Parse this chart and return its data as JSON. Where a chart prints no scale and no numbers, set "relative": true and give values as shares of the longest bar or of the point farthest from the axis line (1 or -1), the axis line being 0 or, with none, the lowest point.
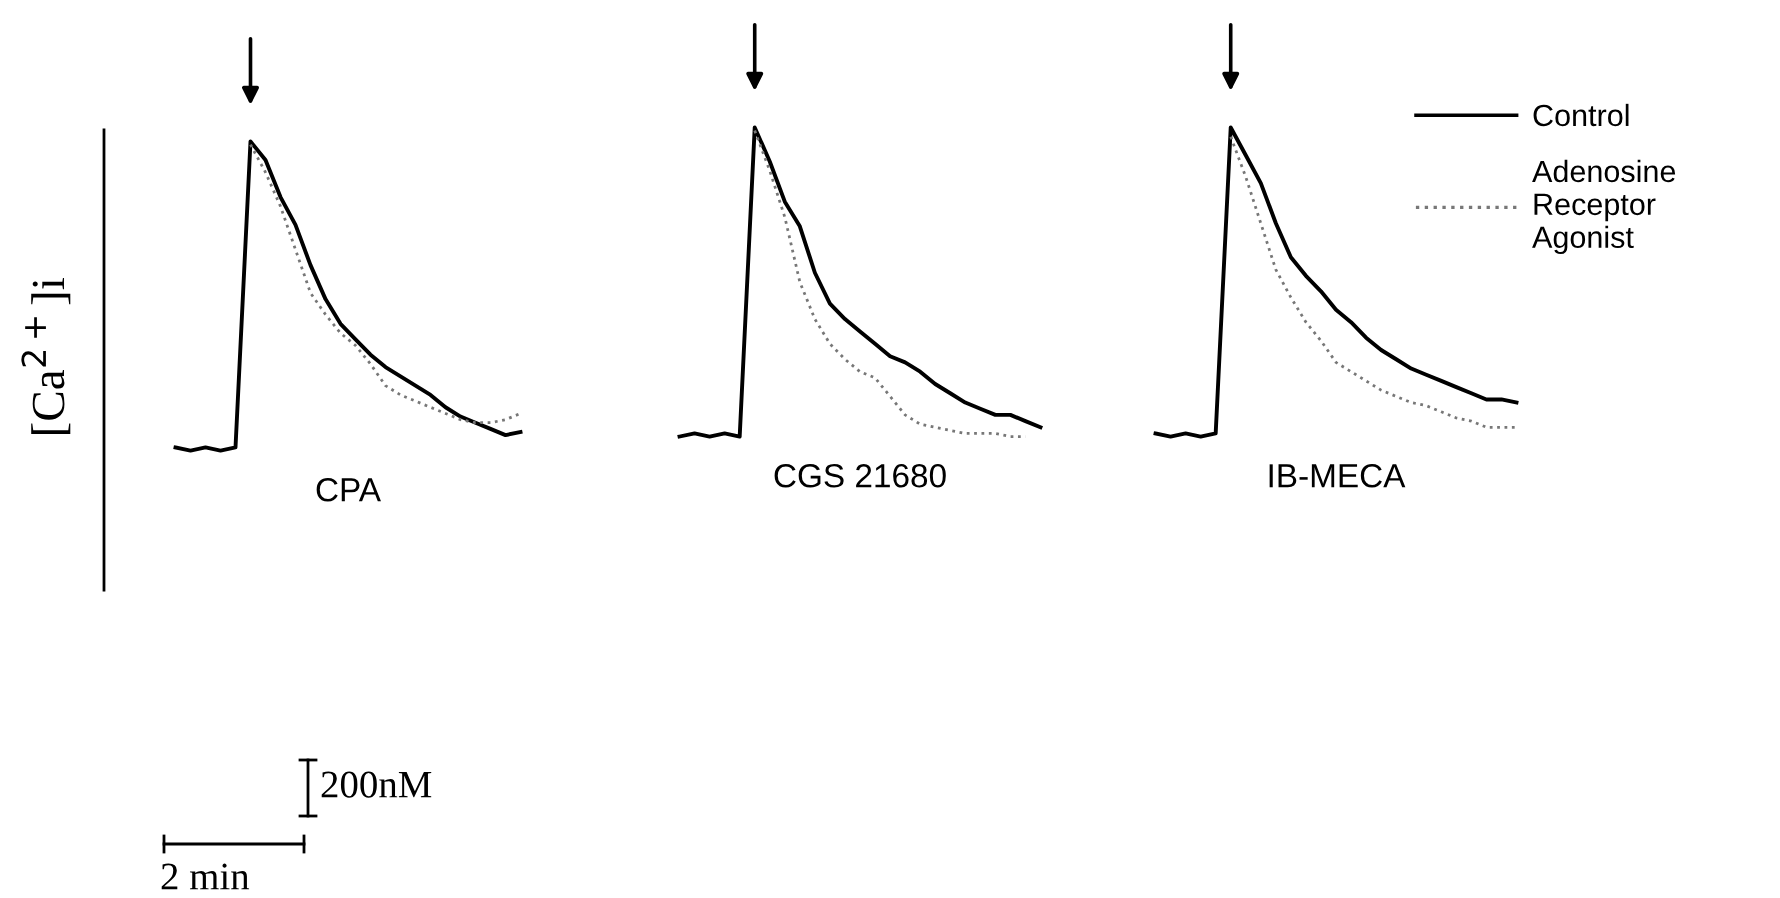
{
  "chart_data": [
    {
      "type": "line",
      "relative": true,
      "xlabel": "CPA",
      "ylabel": "[Ca$^{2+}$]i",
      "annotations": [
        "200nM",
        "2 min"
      ],
      "categories": [
        null,
        null,
        null,
        null,
        null,
        null,
        null,
        null,
        null,
        null,
        null,
        null,
        null,
        null,
        null,
        null,
        null,
        null,
        null,
        null,
        null,
        null,
        null,
        null
      ],
      "series": [
        {
          "color": "#000000",
          "line_style": "solid",
          "values": [
            0.01,
            0,
            0.01,
            0,
            0.01,
            1.0,
            0.94,
            0.82,
            0.73,
            0.6,
            0.49,
            0.41,
            0.36,
            0.31,
            0.27,
            0.24,
            0.21,
            0.18,
            0.14,
            0.11,
            0.09,
            0.07,
            0.05,
            0.06
          ]
        },
        {
          "color": "#777777",
          "line_style": "dotted",
          "values": [
            null,
            null,
            null,
            null,
            null,
            0.99,
            0.9,
            0.79,
            0.65,
            0.51,
            0.44,
            0.38,
            0.34,
            0.28,
            0.21,
            0.18,
            0.16,
            0.14,
            0.12,
            0.1,
            0.09,
            0.09,
            0.1,
            0.12
          ]
        }
      ]
    },
    {
      "type": "line",
      "relative": true,
      "xlabel": "CGS 21680",
      "categories": [
        null,
        null,
        null,
        null,
        null,
        null,
        null,
        null,
        null,
        null,
        null,
        null,
        null,
        null,
        null,
        null,
        null,
        null,
        null,
        null,
        null,
        null,
        null,
        null,
        null
      ],
      "series": [
        {
          "color": "#000000",
          "line_style": "solid",
          "values": [
            0,
            0.01,
            0,
            0.01,
            0,
            1.0,
            0.89,
            0.76,
            0.68,
            0.53,
            0.43,
            0.38,
            0.34,
            0.3,
            0.26,
            0.24,
            0.21,
            0.17,
            0.14,
            0.11,
            0.09,
            0.07,
            0.07,
            0.05,
            0.03
          ]
        },
        {
          "color": "#777777",
          "line_style": "dotted",
          "values": [
            null,
            null,
            null,
            null,
            null,
            0.99,
            0.86,
            0.71,
            0.5,
            0.38,
            0.3,
            0.25,
            0.21,
            0.19,
            0.13,
            0.07,
            0.04,
            0.03,
            0.02,
            0.01,
            0.01,
            0.01,
            0,
            0,
            null
          ]
        }
      ]
    },
    {
      "type": "line",
      "relative": true,
      "xlabel": "IB-MECA",
      "legend": "right",
      "categories": [
        null,
        null,
        null,
        null,
        null,
        null,
        null,
        null,
        null,
        null,
        null,
        null,
        null,
        null,
        null,
        null,
        null,
        null,
        null,
        null,
        null,
        null,
        null,
        null,
        null
      ],
      "series": [
        {
          "name": "Control",
          "color": "#000000",
          "line_style": "solid",
          "values": [
            0.01,
            0,
            0.01,
            0,
            0.01,
            1.0,
            0.91,
            0.82,
            0.69,
            0.58,
            0.52,
            0.47,
            0.41,
            0.37,
            0.32,
            0.28,
            0.25,
            0.22,
            0.2,
            0.18,
            0.16,
            0.14,
            0.12,
            0.12,
            0.11
          ]
        },
        {
          "name": "Adenosine Receptor Agonist",
          "color": "#777777",
          "line_style": "dotted",
          "values": [
            null,
            null,
            null,
            null,
            null,
            0.97,
            0.84,
            0.69,
            0.54,
            0.45,
            0.37,
            0.31,
            0.24,
            0.21,
            0.18,
            0.15,
            0.13,
            0.11,
            0.1,
            0.08,
            0.06,
            0.05,
            0.03,
            0.03,
            0.03
          ]
        }
      ]
    }
  ]
}
